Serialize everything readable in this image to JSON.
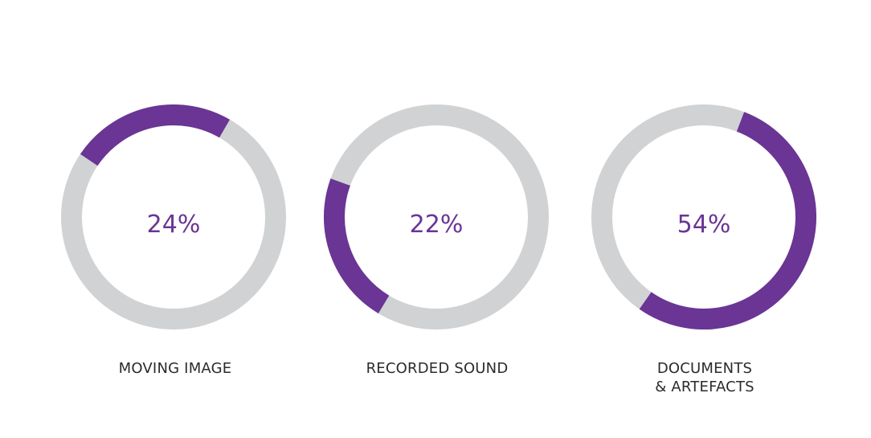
{
  "colors": {
    "accent": "#6a3594",
    "track": "#d1d2d4",
    "text": "#2b2b2b"
  },
  "chart_data": [
    {
      "type": "donut",
      "value": 24,
      "value_label": "24%",
      "label_lines": [
        "MOVING IMAGE"
      ]
    },
    {
      "type": "donut",
      "value": 22,
      "value_label": "22%",
      "label_lines": [
        "RECORDED SOUND"
      ]
    },
    {
      "type": "donut",
      "value": 54,
      "value_label": "54%",
      "label_lines": [
        "DOCUMENTS",
        "& ARTEFACTS"
      ]
    }
  ]
}
